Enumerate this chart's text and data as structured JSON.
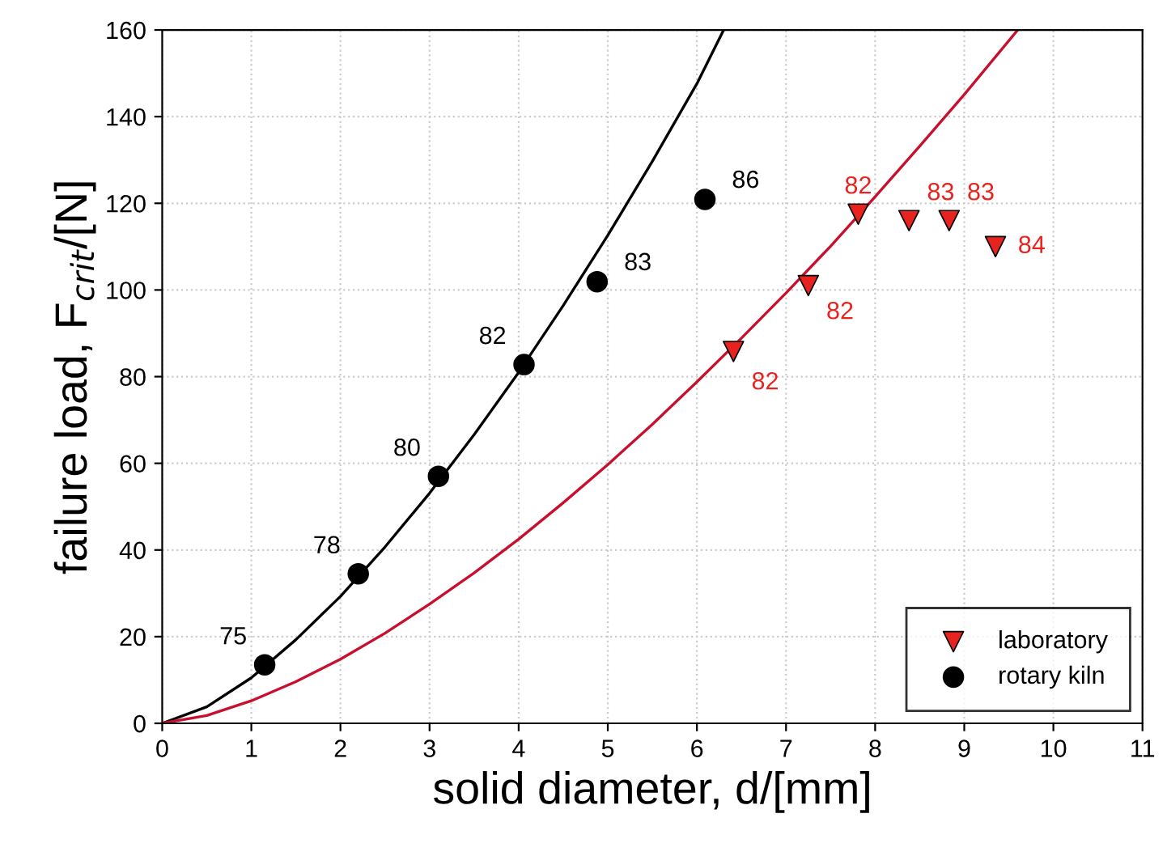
{
  "chart_data": {
    "type": "scatter",
    "xlabel": "solid diameter, d/[mm]",
    "ylabel": "failure load, F$_{crit}$/[N]",
    "xlim": [
      0,
      11
    ],
    "ylim": [
      0,
      160
    ],
    "xticks": [
      0,
      1,
      2,
      3,
      4,
      5,
      6,
      7,
      8,
      9,
      10,
      11
    ],
    "yticks": [
      0,
      20,
      40,
      60,
      80,
      100,
      120,
      140,
      160
    ],
    "grid": true,
    "legend": "bottom right",
    "annotations": [
      {
        "text": "82",
        "x": 6.41,
        "y": 85.8
      },
      {
        "text": "82",
        "x": 7.25,
        "y": 101
      },
      {
        "text": "82",
        "x": 7.81,
        "y": 117.5
      },
      {
        "text": "83",
        "x": 8.38,
        "y": 116
      },
      {
        "text": "83",
        "x": 8.83,
        "y": 116
      },
      {
        "text": "84",
        "x": 9.35,
        "y": 110
      },
      {
        "text": "75",
        "x": 1.15,
        "y": 13.5
      },
      {
        "text": "78",
        "x": 2.2,
        "y": 34.5
      },
      {
        "text": "80",
        "x": 3.1,
        "y": 57
      },
      {
        "text": "82",
        "x": 4.06,
        "y": 82.8
      },
      {
        "text": "83",
        "x": 4.88,
        "y": 101.9
      },
      {
        "text": "86",
        "x": 6.09,
        "y": 120.9
      }
    ],
    "series": [
      {
        "name": "laboratory",
        "type": "scatter",
        "marker": "triangle",
        "color": "#e8231f",
        "x": [
          6.41,
          7.25,
          7.81,
          8.38,
          8.83,
          9.35
        ],
        "values": [
          85.8,
          101,
          117.5,
          116,
          116,
          110
        ]
      },
      {
        "name": "rotary kiln",
        "type": "scatter",
        "marker": "circle",
        "color": "#000000",
        "x": [
          1.15,
          2.2,
          3.1,
          4.06,
          4.88,
          6.09
        ],
        "values": [
          13.5,
          34.5,
          57,
          82.8,
          101.9,
          120.9
        ]
      },
      {
        "type": "line",
        "color": "#000000",
        "x": [
          0,
          0.5,
          1,
          1.5,
          2,
          2.5,
          3,
          3.5,
          4,
          4.5,
          5,
          5.5,
          6,
          6.3
        ],
        "values": [
          0,
          3.8,
          10.5,
          19.3,
          29.3,
          40.7,
          53.1,
          66.6,
          81.0,
          96.4,
          112.6,
          129.7,
          147.6,
          160
        ]
      },
      {
        "type": "line",
        "color": "#c8102e",
        "x": [
          0,
          0.5,
          1,
          1.5,
          2,
          2.5,
          3,
          3.5,
          4,
          4.5,
          5,
          5.5,
          6,
          6.5,
          7,
          7.5,
          8,
          8.5,
          9,
          9.6
        ],
        "values": [
          0,
          1.8,
          5.2,
          9.6,
          14.8,
          20.8,
          27.5,
          34.7,
          42.5,
          50.9,
          59.7,
          69.0,
          78.8,
          88.9,
          99.3,
          110.1,
          121.5,
          133.2,
          145.1,
          160
        ]
      }
    ]
  }
}
